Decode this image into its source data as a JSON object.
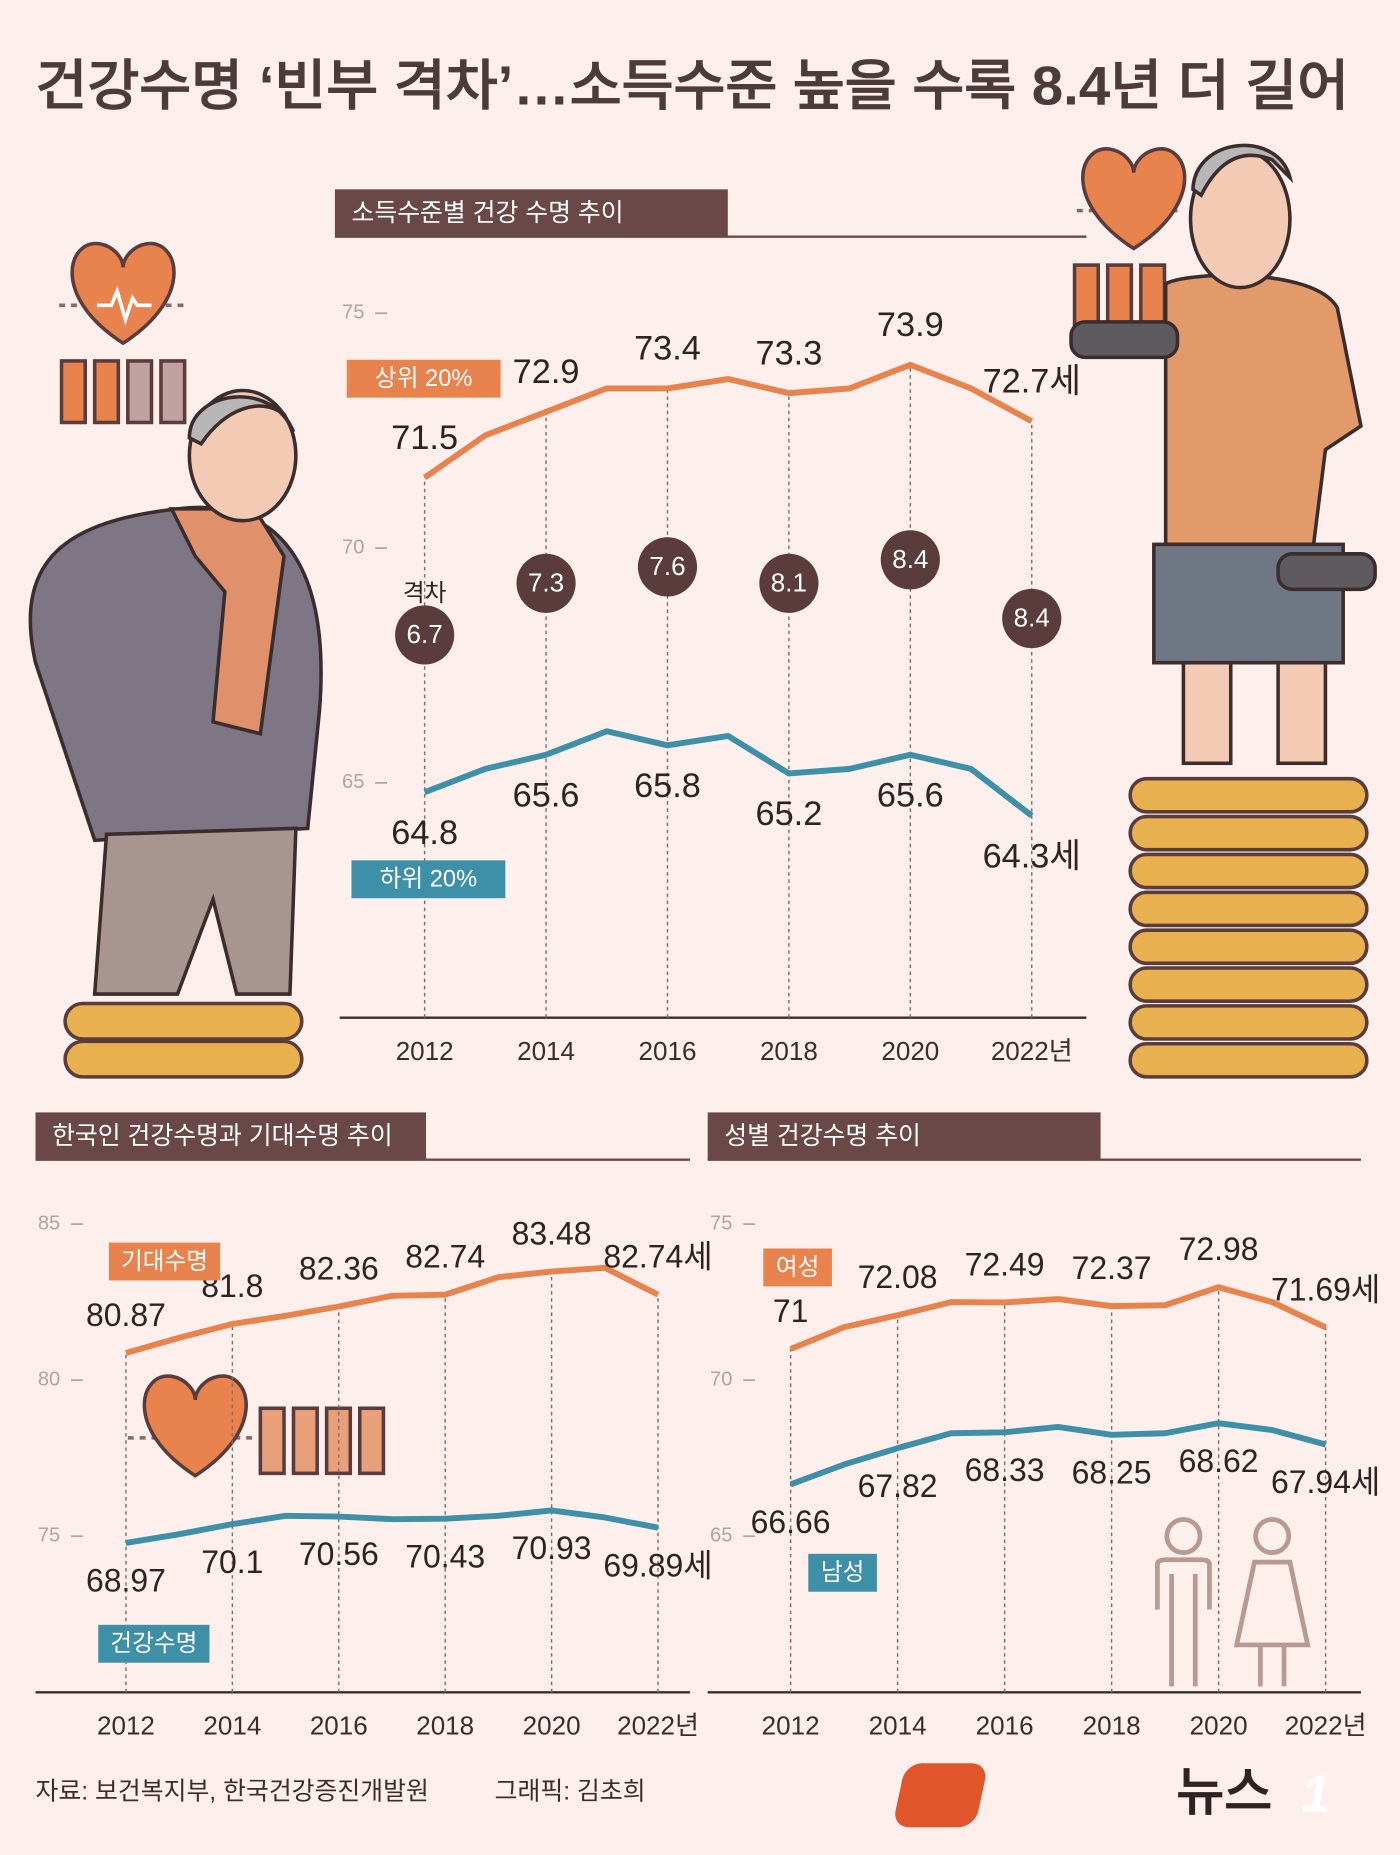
{
  "title": "건강수명 ‘빈부 격차’…소득수준 높을 수록 8.4년 더 길어",
  "chart_data": [
    {
      "type": "line",
      "title": "소득수준별 건강 수명 추이",
      "x": [
        2012,
        2013,
        2014,
        2015,
        2016,
        2017,
        2018,
        2019,
        2020,
        2021,
        2022
      ],
      "xlim": [
        2010.6,
        2022.9
      ],
      "xticks": [
        2012,
        2014,
        2016,
        2018,
        2020,
        {
          "value": 2022,
          "label": "2022년"
        }
      ],
      "ylim": [
        60,
        76
      ],
      "yticks": [
        65,
        70,
        75
      ],
      "series": [
        {
          "name": "상위 20%",
          "color": "#e8834e",
          "values": [
            71.5,
            72.4,
            72.9,
            73.4,
            73.4,
            73.6,
            73.3,
            73.4,
            73.9,
            73.4,
            72.7
          ],
          "value_labels": [
            "71.5",
            null,
            "72.9",
            null,
            "73.4",
            null,
            "73.3",
            null,
            "73.9",
            null,
            "72.7세"
          ]
        },
        {
          "name": "하위 20%",
          "color": "#3e8fa8",
          "values": [
            64.8,
            65.3,
            65.6,
            66.1,
            65.8,
            66.0,
            65.2,
            65.3,
            65.6,
            65.3,
            64.3
          ],
          "value_labels": [
            "64.8",
            null,
            "65.6",
            null,
            "65.8",
            null,
            "65.2",
            null,
            "65.6",
            null,
            "64.3세"
          ]
        }
      ],
      "difference": {
        "label": "격차",
        "values": [
          6.7,
          7.3,
          7.6,
          8.1,
          8.4,
          8.4
        ]
      }
    },
    {
      "type": "line",
      "title": "한국인 건강수명과 기대수명 추이",
      "x": [
        2012,
        2013,
        2014,
        2015,
        2016,
        2017,
        2018,
        2019,
        2020,
        2021,
        2022
      ],
      "xlim": [
        2010.3,
        2022.6
      ],
      "xticks": [
        2012,
        2014,
        2016,
        2018,
        2020,
        {
          "value": 2022,
          "label": "2022년"
        }
      ],
      "ylim": [
        70,
        86
      ],
      "yticks": [
        75,
        80,
        85
      ],
      "y2lim": [
        60,
        90
      ],
      "series": [
        {
          "name": "기대수명",
          "color": "#e8834e",
          "values": [
            80.87,
            81.36,
            81.8,
            82.06,
            82.36,
            82.7,
            82.74,
            83.3,
            83.48,
            83.6,
            82.74
          ],
          "value_labels": [
            "80.87",
            null,
            "81.8",
            null,
            "82.36",
            null,
            "82.74",
            null,
            "83.48",
            null,
            "82.74세"
          ]
        },
        {
          "name": "건강수명",
          "color": "#3e8fa8",
          "axis": "y2",
          "values": [
            68.97,
            69.5,
            70.1,
            70.6,
            70.56,
            70.4,
            70.43,
            70.6,
            70.93,
            70.5,
            69.89
          ],
          "value_labels": [
            "68.97",
            null,
            "70.1",
            null,
            "70.56",
            null,
            "70.43",
            null,
            "70.93",
            null,
            "69.89세"
          ]
        }
      ]
    },
    {
      "type": "line",
      "title": "성별 건강수명 추이",
      "x": [
        2012,
        2013,
        2014,
        2015,
        2016,
        2017,
        2018,
        2019,
        2020,
        2021,
        2022
      ],
      "xlim": [
        2010.45,
        2022.66
      ],
      "xticks": [
        2012,
        2014,
        2016,
        2018,
        2020,
        {
          "value": 2022,
          "label": "2022년"
        }
      ],
      "ylim": [
        60,
        76
      ],
      "yticks": [
        65,
        70,
        75
      ],
      "series": [
        {
          "name": "여성",
          "color": "#e8834e",
          "values": [
            71,
            71.7,
            72.08,
            72.5,
            72.49,
            72.6,
            72.37,
            72.4,
            72.98,
            72.5,
            71.69
          ],
          "value_labels": [
            "71",
            null,
            "72.08",
            null,
            "72.49",
            null,
            "72.37",
            null,
            "72.98",
            null,
            "71.69세"
          ]
        },
        {
          "name": "남성",
          "color": "#3e8fa8",
          "values": [
            66.66,
            67.3,
            67.82,
            68.3,
            68.33,
            68.5,
            68.25,
            68.3,
            68.62,
            68.4,
            67.94
          ],
          "value_labels": [
            "66.66",
            null,
            "67.82",
            null,
            "68.33",
            null,
            "68.25",
            null,
            "68.62",
            null,
            "67.94세"
          ]
        }
      ]
    }
  ],
  "footer": {
    "source": "자료: 보건복지부, 한국건강증진개발원",
    "credit": "그래픽: 김초희",
    "logo_text": "뉴스",
    "logo_mark": "1"
  }
}
